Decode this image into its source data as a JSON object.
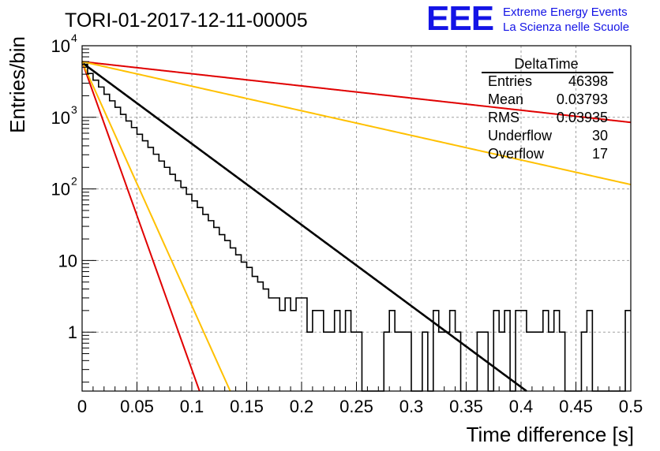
{
  "header": {
    "run_title": "TORI-01-2017-12-11-00005",
    "logo_text": "EEE",
    "logo_line1": "Extreme Energy Events",
    "logo_line2": "La Scienza nelle Scuole"
  },
  "stats": {
    "title": "DeltaTime",
    "rows": [
      {
        "label": "Entries",
        "value": "46398"
      },
      {
        "label": "Mean",
        "value": "0.03793"
      },
      {
        "label": "RMS",
        "value": "0.03935"
      },
      {
        "label": "Underflow",
        "value": "30"
      },
      {
        "label": "Overflow",
        "value": "17"
      }
    ]
  },
  "colors": {
    "histogram": "#000000",
    "fit": "#000000",
    "red": "#e00000",
    "yellow": "#ffc000",
    "grid": "#a0a0a0",
    "logo": "#1414e6"
  },
  "chart_data": {
    "type": "line",
    "xlabel": "Time difference [s]",
    "ylabel": "Entries/bin",
    "xlim": [
      0,
      0.5
    ],
    "ylim": [
      0.15,
      10000
    ],
    "yscale": "log",
    "grid": true,
    "x_ticks": [
      "0",
      "0.05",
      "0.1",
      "0.15",
      "0.2",
      "0.25",
      "0.3",
      "0.35",
      "0.4",
      "0.45",
      "0.5"
    ],
    "y_ticks": [
      {
        "value": 1,
        "label": "1"
      },
      {
        "value": 10,
        "label": "10"
      },
      {
        "value": 100,
        "base": "10",
        "exp": "2"
      },
      {
        "value": 1000,
        "base": "10",
        "exp": "3"
      },
      {
        "value": 10000,
        "base": "10",
        "exp": "4"
      }
    ],
    "histogram": {
      "bin_width": 0.005,
      "counts": [
        5500,
        4100,
        3300,
        2650,
        2100,
        1700,
        1380,
        1100,
        890,
        720,
        580,
        470,
        380,
        305,
        245,
        200,
        160,
        130,
        105,
        84,
        68,
        55,
        44,
        36,
        29,
        23,
        19,
        15,
        12,
        9.5,
        8,
        6,
        5,
        4,
        3,
        3,
        2,
        3,
        2,
        3,
        3,
        1,
        2,
        2,
        1,
        1,
        2,
        1,
        2,
        1,
        1,
        0,
        0,
        0,
        0,
        1,
        2,
        1,
        1,
        1,
        0,
        0,
        1,
        0,
        2,
        1,
        1,
        2,
        1,
        0,
        0,
        0,
        1,
        1,
        0,
        2,
        1,
        2,
        0,
        2,
        2,
        1,
        1,
        1,
        2,
        1,
        2,
        1,
        0,
        0,
        0,
        1,
        2,
        0,
        0,
        0,
        0,
        0,
        0,
        2
      ]
    },
    "curves": [
      {
        "color": "black",
        "amplitude": 5800,
        "x_at_floor": 0.405
      },
      {
        "color": "red",
        "amplitude": 6000,
        "y_at_xmax": 850
      },
      {
        "color": "yellow",
        "amplitude": 6000,
        "y_at_xmax": 115
      },
      {
        "color": "red",
        "amplitude": 6000,
        "x_at_floor": 0.107
      },
      {
        "color": "yellow",
        "amplitude": 6000,
        "x_at_floor": 0.135
      }
    ]
  }
}
